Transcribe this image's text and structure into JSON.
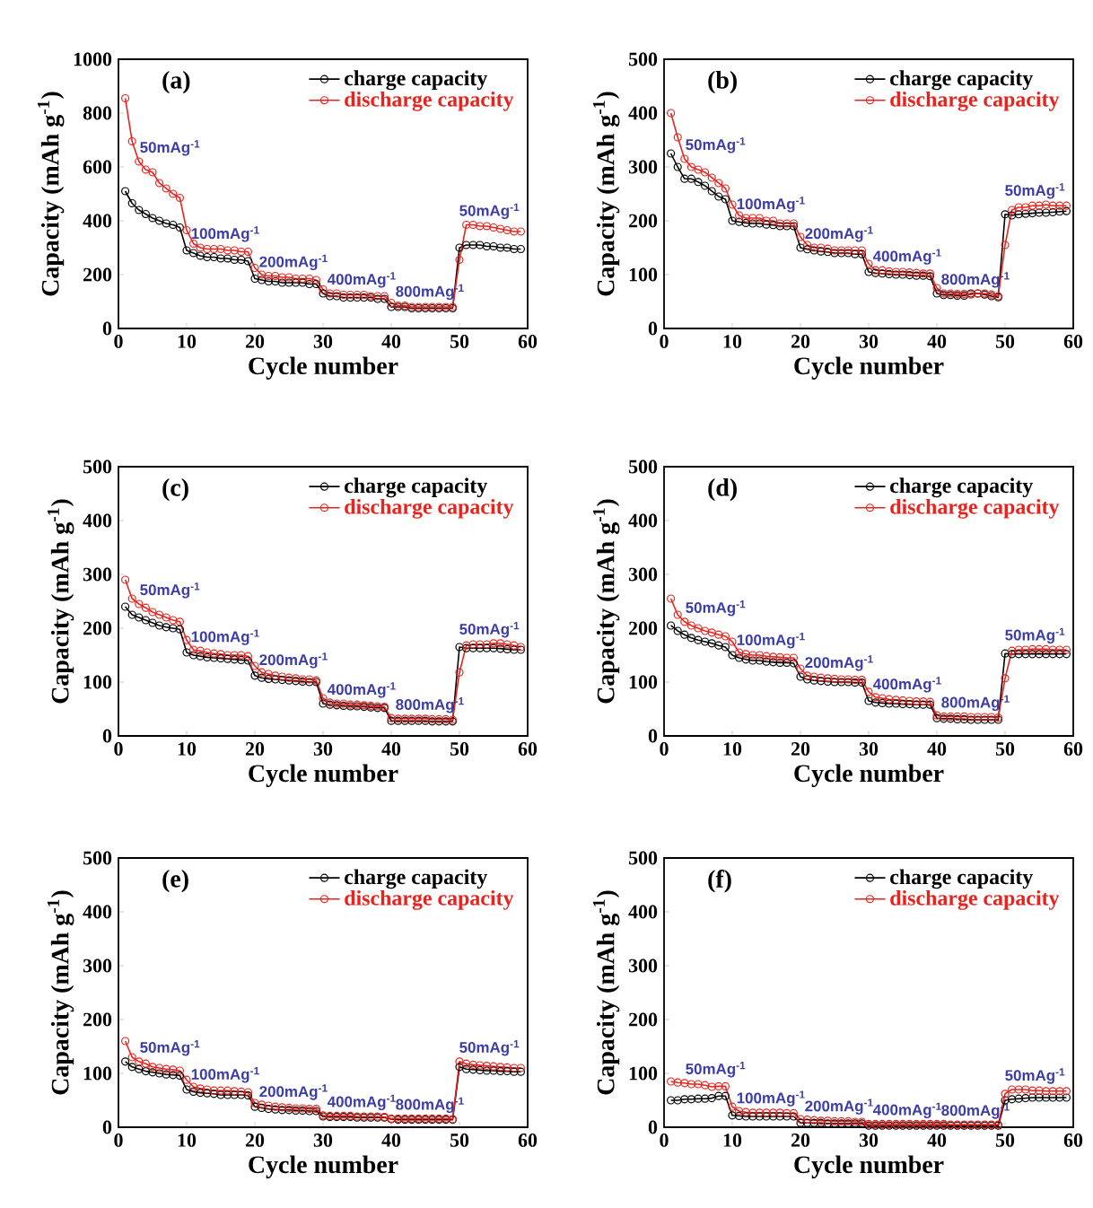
{
  "chart_data": [
    {
      "type": "line",
      "title": "(a)",
      "xlabel": "Cycle number",
      "ylabel": "Capacity (mAh g$^{-1}$)",
      "xlim": [
        0,
        60
      ],
      "ylim": [
        0,
        1000
      ],
      "xticks": [
        0,
        10,
        20,
        30,
        40,
        50,
        60
      ],
      "yticks": [
        0,
        200,
        400,
        600,
        800,
        1000
      ],
      "legend": "top right",
      "marker": "circle",
      "line_style": "solid",
      "x": [
        1,
        2,
        3,
        4,
        5,
        6,
        7,
        8,
        9,
        10,
        11,
        12,
        13,
        14,
        15,
        16,
        17,
        18,
        19,
        20,
        21,
        22,
        23,
        24,
        25,
        26,
        27,
        28,
        29,
        30,
        31,
        32,
        33,
        34,
        35,
        36,
        37,
        38,
        39,
        40,
        41,
        42,
        43,
        44,
        45,
        46,
        47,
        48,
        49,
        50,
        51,
        52,
        53,
        54,
        55,
        56,
        57,
        58,
        59
      ],
      "series": [
        {
          "name": "charge capacity",
          "color": "#000000",
          "values": [
            510,
            465,
            440,
            425,
            410,
            400,
            390,
            385,
            375,
            290,
            280,
            270,
            265,
            265,
            260,
            260,
            255,
            255,
            250,
            185,
            180,
            175,
            175,
            170,
            170,
            170,
            170,
            165,
            165,
            130,
            120,
            120,
            115,
            115,
            115,
            115,
            115,
            110,
            110,
            80,
            80,
            80,
            75,
            75,
            75,
            75,
            75,
            75,
            75,
            300,
            310,
            310,
            310,
            305,
            305,
            300,
            300,
            295,
            295
          ]
        },
        {
          "name": "discharge capacity",
          "color": "#e8231e",
          "values": [
            855,
            695,
            620,
            590,
            580,
            540,
            520,
            500,
            485,
            365,
            315,
            300,
            295,
            295,
            295,
            290,
            290,
            285,
            285,
            225,
            200,
            195,
            195,
            190,
            190,
            185,
            185,
            185,
            180,
            145,
            130,
            130,
            125,
            125,
            125,
            125,
            120,
            120,
            120,
            95,
            85,
            85,
            80,
            80,
            80,
            80,
            80,
            80,
            80,
            255,
            385,
            385,
            380,
            380,
            375,
            370,
            365,
            360,
            360
          ]
        }
      ],
      "annotations": [
        "50mAg$^{-1}$",
        "100mAg$^{-1}$",
        "200mAg$^{-1}$",
        "400mAg$^{-1}$",
        "800mAg$^{-1}$",
        "50mAg$^{-1}$"
      ]
    },
    {
      "type": "line",
      "title": "(b)",
      "xlabel": "Cycle number",
      "ylabel": "Capacity (mAh g$^{-1}$)",
      "xlim": [
        0,
        60
      ],
      "ylim": [
        0,
        500
      ],
      "xticks": [
        0,
        10,
        20,
        30,
        40,
        50,
        60
      ],
      "yticks": [
        0,
        100,
        200,
        300,
        400,
        500
      ],
      "legend": "top right",
      "marker": "circle",
      "line_style": "solid",
      "x": [
        1,
        2,
        3,
        4,
        5,
        6,
        7,
        8,
        9,
        10,
        11,
        12,
        13,
        14,
        15,
        16,
        17,
        18,
        19,
        20,
        21,
        22,
        23,
        24,
        25,
        26,
        27,
        28,
        29,
        30,
        31,
        32,
        33,
        34,
        35,
        36,
        37,
        38,
        39,
        40,
        41,
        42,
        43,
        44,
        45,
        46,
        47,
        48,
        49,
        50,
        51,
        52,
        53,
        54,
        55,
        56,
        57,
        58,
        59
      ],
      "series": [
        {
          "name": "charge capacity",
          "color": "#000000",
          "values": [
            325,
            300,
            278,
            278,
            272,
            265,
            255,
            245,
            240,
            200,
            198,
            196,
            195,
            195,
            193,
            192,
            190,
            190,
            190,
            150,
            147,
            145,
            143,
            142,
            140,
            140,
            140,
            138,
            138,
            105,
            103,
            102,
            101,
            100,
            100,
            99,
            98,
            98,
            97,
            65,
            62,
            62,
            61,
            61,
            65,
            65,
            63,
            60,
            58,
            212,
            210,
            212,
            213,
            214,
            215,
            215,
            216,
            217,
            218
          ]
        },
        {
          "name": "discharge capacity",
          "color": "#e8231e",
          "values": [
            400,
            355,
            315,
            300,
            295,
            290,
            280,
            270,
            260,
            230,
            210,
            205,
            205,
            205,
            200,
            200,
            195,
            195,
            195,
            170,
            155,
            150,
            150,
            148,
            145,
            145,
            145,
            145,
            145,
            120,
            108,
            108,
            106,
            105,
            105,
            104,
            103,
            102,
            102,
            75,
            65,
            65,
            64,
            64,
            63,
            65,
            65,
            63,
            60,
            155,
            220,
            225,
            225,
            228,
            228,
            230,
            228,
            228,
            228
          ]
        }
      ],
      "annotations": [
        "50mAg$^{-1}$",
        "100mAg$^{-1}$",
        "200mAg$^{-1}$",
        "400mAg$^{-1}$",
        "800mAg$^{-1}$",
        "50mAg$^{-1}$"
      ]
    },
    {
      "type": "line",
      "title": "(c)",
      "xlabel": "Cycle number",
      "ylabel": "Capacity (mAh g$^{-1}$)",
      "xlim": [
        0,
        60
      ],
      "ylim": [
        0,
        500
      ],
      "xticks": [
        0,
        10,
        20,
        30,
        40,
        50,
        60
      ],
      "yticks": [
        0,
        100,
        200,
        300,
        400,
        500
      ],
      "legend": "top right",
      "marker": "circle",
      "line_style": "solid",
      "x": [
        1,
        2,
        3,
        4,
        5,
        6,
        7,
        8,
        9,
        10,
        11,
        12,
        13,
        14,
        15,
        16,
        17,
        18,
        19,
        20,
        21,
        22,
        23,
        24,
        25,
        26,
        27,
        28,
        29,
        30,
        31,
        32,
        33,
        34,
        35,
        36,
        37,
        38,
        39,
        40,
        41,
        42,
        43,
        44,
        45,
        46,
        47,
        48,
        49,
        50,
        51,
        52,
        53,
        54,
        55,
        56,
        57,
        58,
        59
      ],
      "series": [
        {
          "name": "charge capacity",
          "color": "#000000",
          "values": [
            240,
            225,
            220,
            215,
            210,
            205,
            202,
            200,
            198,
            155,
            150,
            148,
            146,
            145,
            144,
            143,
            142,
            141,
            140,
            112,
            108,
            106,
            105,
            104,
            103,
            102,
            101,
            100,
            100,
            60,
            58,
            57,
            56,
            55,
            55,
            54,
            53,
            52,
            52,
            28,
            28,
            28,
            28,
            28,
            28,
            27,
            27,
            27,
            27,
            165,
            163,
            163,
            163,
            163,
            163,
            162,
            161,
            160,
            160
          ]
        },
        {
          "name": "discharge capacity",
          "color": "#e8231e",
          "values": [
            290,
            255,
            245,
            238,
            230,
            225,
            220,
            215,
            212,
            178,
            160,
            158,
            155,
            153,
            152,
            150,
            150,
            150,
            148,
            130,
            118,
            115,
            112,
            110,
            108,
            107,
            105,
            105,
            103,
            70,
            62,
            60,
            60,
            58,
            58,
            57,
            56,
            55,
            54,
            33,
            32,
            32,
            32,
            32,
            32,
            31,
            31,
            31,
            30,
            118,
            168,
            170,
            170,
            170,
            172,
            172,
            170,
            168,
            165
          ]
        }
      ],
      "annotations": [
        "50mAg$^{-1}$",
        "100mAg$^{-1}$",
        "200mAg$^{-1}$",
        "400mAg$^{-1}$",
        "800mAg$^{-1}$",
        "50mAg$^{-1}$"
      ]
    },
    {
      "type": "line",
      "title": "(d)",
      "xlabel": "Cycle number",
      "ylabel": "Capacity (mAh g$^{-1}$)",
      "xlim": [
        0,
        60
      ],
      "ylim": [
        0,
        500
      ],
      "xticks": [
        0,
        10,
        20,
        30,
        40,
        50,
        60
      ],
      "yticks": [
        0,
        100,
        200,
        300,
        400,
        500
      ],
      "legend": "top right",
      "marker": "circle",
      "line_style": "solid",
      "x": [
        1,
        2,
        3,
        4,
        5,
        6,
        7,
        8,
        9,
        10,
        11,
        12,
        13,
        14,
        15,
        16,
        17,
        18,
        19,
        20,
        21,
        22,
        23,
        24,
        25,
        26,
        27,
        28,
        29,
        30,
        31,
        32,
        33,
        34,
        35,
        36,
        37,
        38,
        39,
        40,
        41,
        42,
        43,
        44,
        45,
        46,
        47,
        48,
        49,
        50,
        51,
        52,
        53,
        54,
        55,
        56,
        57,
        58,
        59
      ],
      "series": [
        {
          "name": "charge capacity",
          "color": "#000000",
          "values": [
            205,
            195,
            188,
            182,
            178,
            175,
            172,
            168,
            165,
            150,
            145,
            142,
            140,
            140,
            138,
            137,
            136,
            136,
            135,
            110,
            105,
            103,
            102,
            101,
            100,
            100,
            100,
            99,
            99,
            65,
            62,
            61,
            60,
            60,
            59,
            59,
            58,
            58,
            58,
            33,
            32,
            32,
            31,
            31,
            30,
            30,
            30,
            30,
            30,
            153,
            152,
            152,
            152,
            152,
            152,
            152,
            152,
            152,
            152
          ]
        },
        {
          "name": "discharge capacity",
          "color": "#e8231e",
          "values": [
            255,
            225,
            212,
            205,
            200,
            195,
            192,
            188,
            185,
            175,
            155,
            152,
            150,
            150,
            148,
            147,
            146,
            145,
            145,
            125,
            112,
            110,
            108,
            107,
            106,
            105,
            105,
            104,
            104,
            82,
            72,
            70,
            68,
            67,
            66,
            65,
            64,
            64,
            63,
            38,
            36,
            36,
            36,
            36,
            35,
            35,
            35,
            35,
            34,
            107,
            158,
            160,
            160,
            161,
            161,
            161,
            160,
            160,
            160
          ]
        }
      ],
      "annotations": [
        "50mAg$^{-1}$",
        "100mAg$^{-1}$",
        "200mAg$^{-1}$",
        "400mAg$^{-1}$",
        "800mAg$^{-1}$",
        "50mAg$^{-1}$"
      ]
    },
    {
      "type": "line",
      "title": "(e)",
      "xlabel": "Cycle number",
      "ylabel": "Capacity (mAh g$^{-1}$)",
      "xlim": [
        0,
        60
      ],
      "ylim": [
        0,
        500
      ],
      "xticks": [
        0,
        10,
        20,
        30,
        40,
        50,
        60
      ],
      "yticks": [
        0,
        100,
        200,
        300,
        400,
        500
      ],
      "legend": "top right",
      "marker": "circle",
      "line_style": "solid",
      "x": [
        1,
        2,
        3,
        4,
        5,
        6,
        7,
        8,
        9,
        10,
        11,
        12,
        13,
        14,
        15,
        16,
        17,
        18,
        19,
        20,
        21,
        22,
        23,
        24,
        25,
        26,
        27,
        28,
        29,
        30,
        31,
        32,
        33,
        34,
        35,
        36,
        37,
        38,
        39,
        40,
        41,
        42,
        43,
        44,
        45,
        46,
        47,
        48,
        49,
        50,
        51,
        52,
        53,
        54,
        55,
        56,
        57,
        58,
        59
      ],
      "series": [
        {
          "name": "charge capacity",
          "color": "#000000",
          "values": [
            122,
            112,
            108,
            104,
            102,
            100,
            98,
            97,
            96,
            70,
            66,
            64,
            63,
            62,
            60,
            60,
            60,
            60,
            59,
            38,
            36,
            34,
            33,
            32,
            32,
            31,
            31,
            30,
            30,
            20,
            19,
            19,
            19,
            19,
            18,
            18,
            18,
            18,
            18,
            15,
            14,
            14,
            14,
            14,
            14,
            14,
            14,
            14,
            14,
            112,
            108,
            107,
            106,
            105,
            105,
            104,
            104,
            103,
            103
          ]
        },
        {
          "name": "discharge capacity",
          "color": "#e8231e",
          "values": [
            160,
            130,
            122,
            118,
            112,
            110,
            108,
            107,
            105,
            88,
            75,
            72,
            70,
            68,
            68,
            68,
            67,
            66,
            65,
            45,
            42,
            40,
            38,
            37,
            36,
            35,
            35,
            34,
            34,
            22,
            21,
            21,
            21,
            21,
            20,
            20,
            20,
            20,
            19,
            16,
            16,
            16,
            16,
            16,
            16,
            16,
            16,
            16,
            15,
            122,
            118,
            116,
            115,
            114,
            113,
            112,
            111,
            110,
            110
          ]
        }
      ],
      "annotations": [
        "50mAg$^{-1}$",
        "100mAg$^{-1}$",
        "200mAg$^{-1}$",
        "400mAg$^{-1}$",
        "800mAg$^{-1}$",
        "50mAg$^{-1}$"
      ]
    },
    {
      "type": "line",
      "title": "(f)",
      "xlabel": "Cycle number",
      "ylabel": "Capacity (mAh g$^{-1}$)",
      "xlim": [
        0,
        60
      ],
      "ylim": [
        0,
        500
      ],
      "xticks": [
        0,
        10,
        20,
        30,
        40,
        50,
        60
      ],
      "yticks": [
        0,
        100,
        200,
        300,
        400,
        500
      ],
      "legend": "top right",
      "marker": "circle",
      "line_style": "solid",
      "x": [
        1,
        2,
        3,
        4,
        5,
        6,
        7,
        8,
        9,
        10,
        11,
        12,
        13,
        14,
        15,
        16,
        17,
        18,
        19,
        20,
        21,
        22,
        23,
        24,
        25,
        26,
        27,
        28,
        29,
        30,
        31,
        32,
        33,
        34,
        35,
        36,
        37,
        38,
        39,
        40,
        41,
        42,
        43,
        44,
        45,
        46,
        47,
        48,
        49,
        50,
        51,
        52,
        53,
        54,
        55,
        56,
        57,
        58,
        59
      ],
      "series": [
        {
          "name": "charge capacity",
          "color": "#000000",
          "values": [
            50,
            50,
            52,
            52,
            53,
            53,
            54,
            58,
            58,
            22,
            21,
            20,
            20,
            20,
            20,
            20,
            20,
            20,
            20,
            8,
            8,
            8,
            8,
            7,
            7,
            7,
            7,
            7,
            7,
            3,
            3,
            3,
            3,
            3,
            3,
            3,
            3,
            3,
            3,
            3,
            3,
            3,
            3,
            3,
            3,
            3,
            3,
            3,
            3,
            50,
            52,
            53,
            54,
            55,
            55,
            55,
            55,
            55,
            55
          ]
        },
        {
          "name": "discharge capacity",
          "color": "#e8231e",
          "values": [
            85,
            83,
            82,
            80,
            80,
            78,
            75,
            76,
            76,
            38,
            30,
            28,
            27,
            27,
            27,
            27,
            27,
            26,
            26,
            15,
            14,
            13,
            12,
            12,
            11,
            11,
            11,
            10,
            10,
            6,
            6,
            6,
            6,
            6,
            6,
            6,
            6,
            6,
            6,
            6,
            6,
            5,
            5,
            5,
            5,
            5,
            5,
            5,
            5,
            62,
            70,
            70,
            70,
            68,
            68,
            67,
            67,
            67,
            67
          ]
        }
      ],
      "annotations": [
        "50mAg$^{-1}$",
        "100mAg$^{-1}$",
        "200mAg$^{-1}$",
        "400mAg$^{-1}$",
        "800mAg$^{-1}$",
        "50mAg$^{-1}$"
      ]
    }
  ]
}
